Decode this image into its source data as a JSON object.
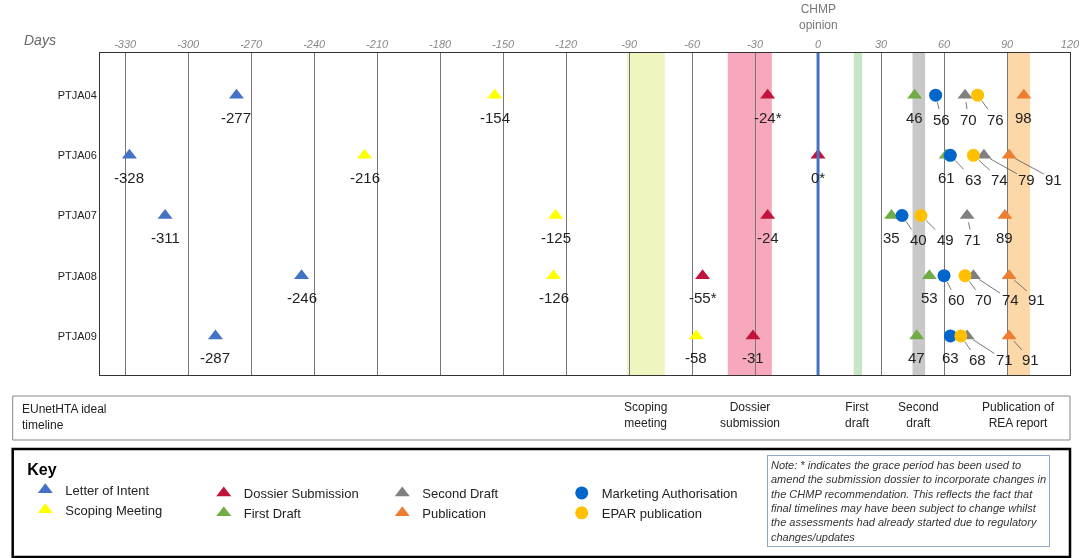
{
  "chart_data": {
    "type": "scatter",
    "orientation": "horizontal",
    "xlabel": "Days",
    "legend_title": "Key",
    "legend": "bottom",
    "grid": "x",
    "categories": [
      "PTJA04",
      "PTJA06",
      "PTJA07",
      "PTJA08",
      "PTJA09"
    ],
    "xlim": [
      -342,
      120
    ],
    "xticks": [
      -330,
      -300,
      -270,
      -240,
      -210,
      -180,
      -150,
      -120,
      -90,
      -60,
      -30,
      0,
      30,
      60,
      90,
      120
    ],
    "series": [
      {
        "name": "Letter of Intent",
        "color": "#4472c4",
        "marker": "triangle",
        "values": [
          -277,
          -328,
          -311,
          -246,
          -287
        ],
        "value_labels": [
          "-277",
          "-328",
          "-311",
          "-246",
          "-287"
        ]
      },
      {
        "name": "Scoping Meeting",
        "color": "#ffff00",
        "marker": "triangle",
        "values": [
          -154,
          -216,
          -125,
          -126,
          -58
        ],
        "value_labels": [
          "-154",
          "-216",
          "-125",
          "-126",
          "-58"
        ]
      },
      {
        "name": "Dossier Submission",
        "color": "#c0143c",
        "marker": "triangle",
        "values": [
          -24,
          0,
          -24,
          -55,
          -31
        ],
        "value_labels": [
          "-24*",
          "0*",
          "-24",
          "-55*",
          "-31"
        ]
      },
      {
        "name": "First Draft",
        "color": "#70ad47",
        "marker": "triangle",
        "values": [
          46,
          61,
          35,
          53,
          47
        ],
        "value_labels": [
          "46",
          "61",
          "35",
          "53",
          "47"
        ]
      },
      {
        "name": "Second Draft",
        "color": "#808080",
        "marker": "triangle",
        "values": [
          70,
          79,
          71,
          74,
          71
        ],
        "value_labels": [
          "70",
          "79",
          "71",
          "74",
          "71"
        ]
      },
      {
        "name": "Publication",
        "color": "#ed7d31",
        "marker": "triangle",
        "values": [
          98,
          91,
          89,
          91,
          91
        ],
        "value_labels": [
          "98",
          "91",
          "89",
          "91",
          "91"
        ]
      },
      {
        "name": "Marketing Authorisation",
        "color": "#0066cc",
        "marker": "circle",
        "values": [
          56,
          63,
          40,
          60,
          63
        ],
        "value_labels": [
          "56",
          "63",
          "40",
          "60",
          "63"
        ]
      },
      {
        "name": "EPAR publication",
        "color": "#ffc000",
        "marker": "circle",
        "values": [
          76,
          74,
          49,
          70,
          68
        ],
        "value_labels": [
          "76",
          "74",
          "49",
          "70",
          "68"
        ]
      }
    ],
    "ref_lines": [
      {
        "axis": "x",
        "value": 0,
        "label": "CHMP opinion",
        "color": "#4472c4"
      }
    ],
    "bands": [
      {
        "axis": "x",
        "from": -91,
        "to": -73,
        "label": "Scoping meeting",
        "color": "#f0f5c0"
      },
      {
        "axis": "x",
        "from": -43,
        "to": -22,
        "label": "Dossier submission",
        "color": "#f8a8bc"
      },
      {
        "axis": "x",
        "from": 17,
        "to": 21,
        "label": "First draft",
        "color": "#c6e6c6"
      },
      {
        "axis": "x",
        "from": 45,
        "to": 51,
        "label": "Second draft",
        "color": "#c8c8c8"
      },
      {
        "axis": "x",
        "from": 90,
        "to": 101,
        "label": "Publication of REA report",
        "color": "#fcd8a8"
      }
    ],
    "annotations": [
      "EUnetHTA ideal timeline",
      "Note: * indicates the grace period has been used to amend the submission dossier to incorporate changes in the CHMP recommendation. This reflects the fact that final timelines may have been subject to change whilst the assessments had already started due to regulatory changes/updates"
    ]
  }
}
